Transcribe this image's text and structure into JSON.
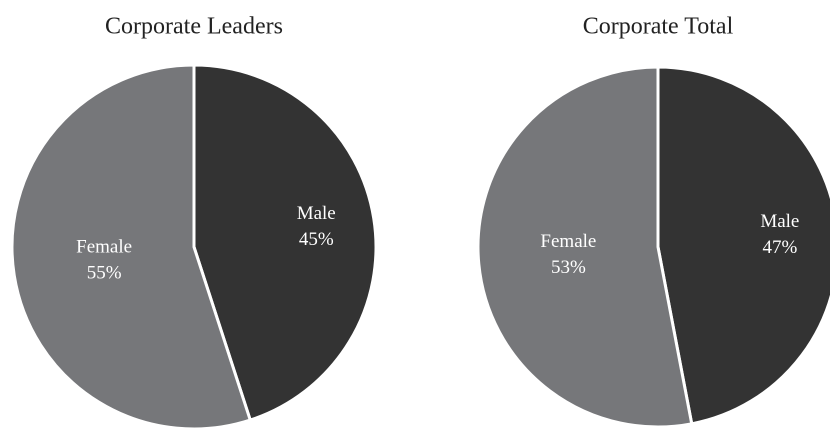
{
  "chart_data": [
    {
      "type": "pie",
      "title": "Corporate Leaders",
      "categories": [
        "Male",
        "Female"
      ],
      "values": [
        45,
        55
      ],
      "value_labels": [
        "45%",
        "55%"
      ],
      "colors": [
        "#333333",
        "#76777a"
      ]
    },
    {
      "type": "pie",
      "title": "Corporate Total",
      "categories": [
        "Male",
        "Female"
      ],
      "values": [
        47,
        53
      ],
      "value_labels": [
        "47%",
        "53%"
      ],
      "colors": [
        "#333333",
        "#76777a"
      ]
    }
  ]
}
